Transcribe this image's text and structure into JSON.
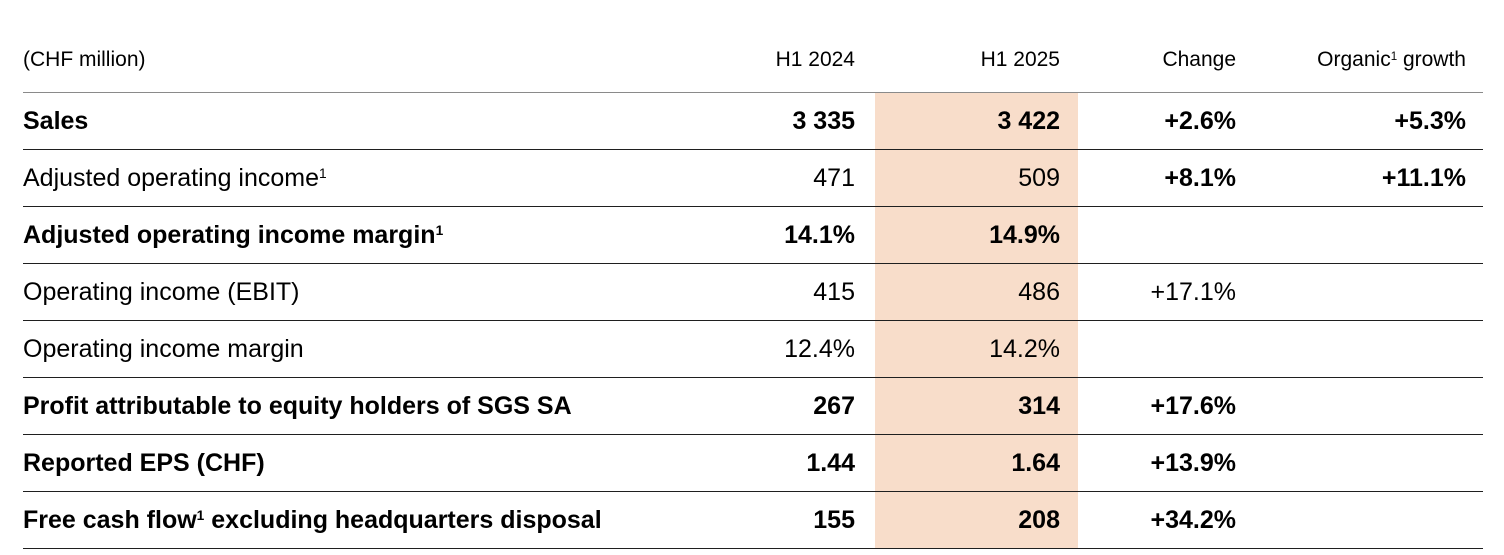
{
  "table": {
    "unit_label": "(CHF million)",
    "columns": {
      "h1_2024": "H1 2024",
      "h1_2025": "H1 2025",
      "change": "Change",
      "organic_pre": "Organic",
      "organic_sup": "1",
      "organic_post": " growth"
    },
    "highlight_color": "#f8ddca",
    "rows": [
      {
        "label": "Sales",
        "sup": "",
        "label_suffix": "",
        "h1_2024": "3 335",
        "h1_2025": "3 422",
        "change": "+2.6%",
        "organic": "+5.3%"
      },
      {
        "label": "Adjusted operating income",
        "sup": "1",
        "label_suffix": "",
        "h1_2024": "471",
        "h1_2025": "509",
        "change": "+8.1%",
        "organic": "+11.1%"
      },
      {
        "label": "Adjusted operating income margin",
        "sup": "1",
        "label_suffix": "",
        "h1_2024": "14.1%",
        "h1_2025": "14.9%",
        "change": "",
        "organic": ""
      },
      {
        "label": "Operating income (EBIT)",
        "sup": "",
        "label_suffix": "",
        "h1_2024": "415",
        "h1_2025": "486",
        "change": "+17.1%",
        "organic": ""
      },
      {
        "label": "Operating income margin",
        "sup": "",
        "label_suffix": "",
        "h1_2024": "12.4%",
        "h1_2025": "14.2%",
        "change": "",
        "organic": ""
      },
      {
        "label": "Profit attributable to equity holders of SGS SA",
        "sup": "",
        "label_suffix": "",
        "h1_2024": "267",
        "h1_2025": "314",
        "change": "+17.6%",
        "organic": ""
      },
      {
        "label": "Reported EPS (CHF)",
        "sup": "",
        "label_suffix": "",
        "h1_2024": "1.44",
        "h1_2025": "1.64",
        "change": "+13.9%",
        "organic": ""
      },
      {
        "label": "Free cash flow",
        "sup": "1",
        "label_suffix": " excluding headquarters disposal",
        "h1_2024": "155",
        "h1_2025": "208",
        "change": "+34.2%",
        "organic": ""
      }
    ]
  }
}
